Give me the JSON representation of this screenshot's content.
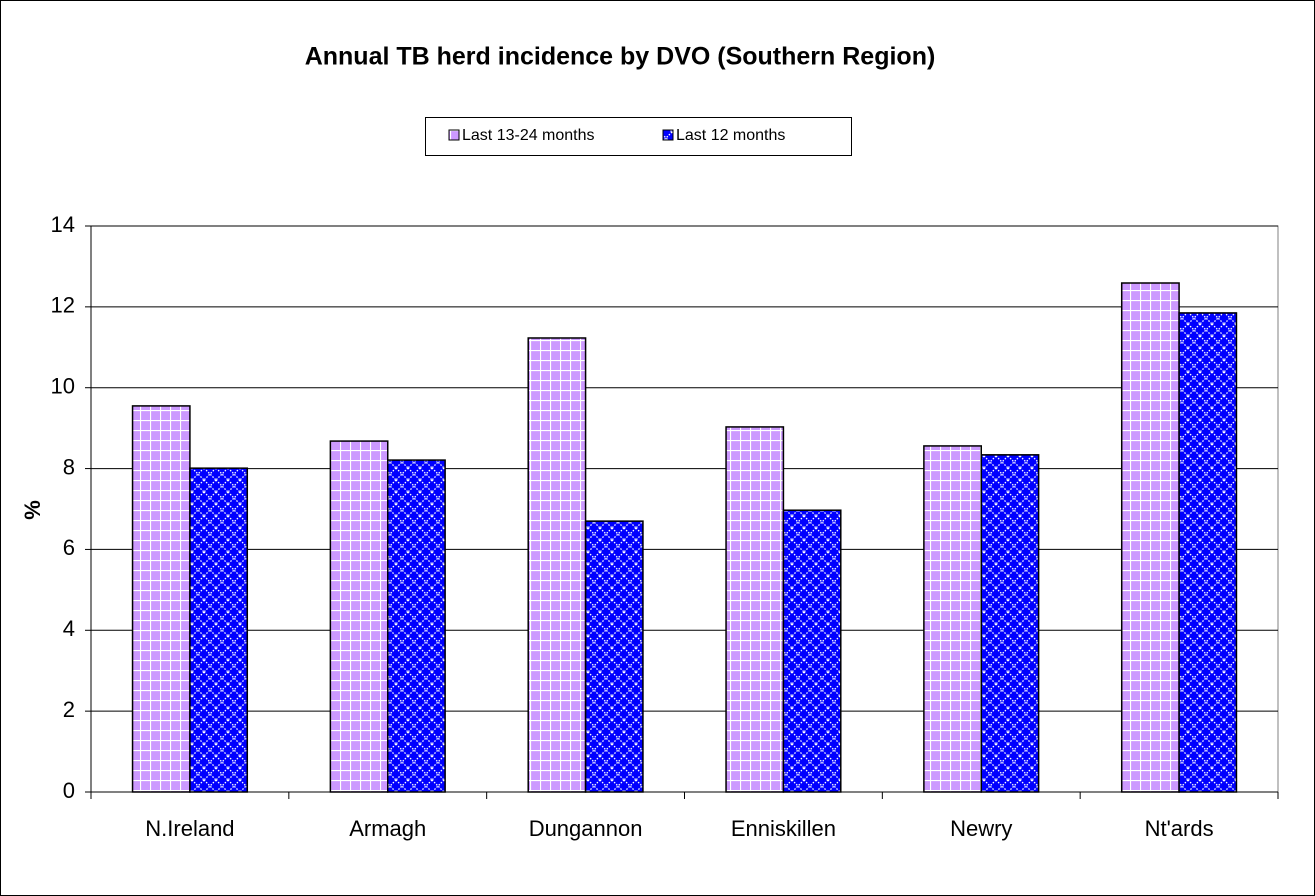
{
  "chart_data": {
    "type": "bar",
    "title": "Annual TB herd incidence by DVO (Southern Region)",
    "y_label": "%",
    "categories": [
      "N.Ireland",
      "Armagh",
      "Dungannon",
      "Enniskillen",
      "Newry",
      "Nt'ards"
    ],
    "series": [
      {
        "name": "Last 13-24 months",
        "color": "#cc99ff",
        "values": [
          9.55,
          8.68,
          11.23,
          9.03,
          8.56,
          12.59
        ]
      },
      {
        "name": "Last 12 months",
        "color": "#0000ff",
        "values": [
          8.01,
          8.21,
          6.7,
          6.97,
          8.34,
          11.85
        ]
      }
    ],
    "ylim": [
      0,
      14
    ],
    "yticks": [
      0,
      2,
      4,
      6,
      8,
      10,
      12,
      14
    ],
    "grid": true,
    "legend": "top"
  }
}
